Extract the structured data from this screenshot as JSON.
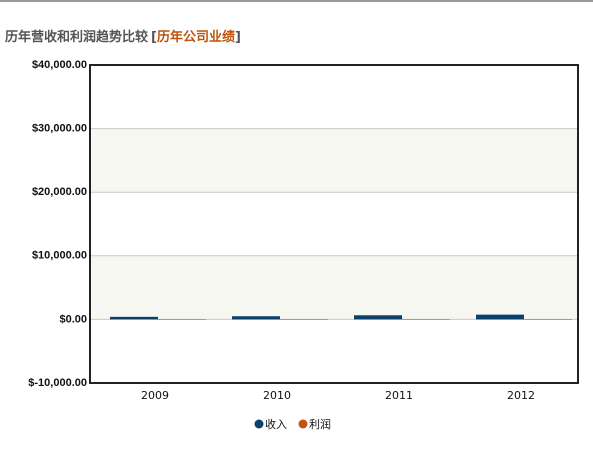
{
  "chart_data": {
    "type": "bar",
    "title": "历年营收和利润趋势比较",
    "subtitle": "历年公司业绩",
    "brackets": [
      "[",
      "]"
    ],
    "categories": [
      "2009",
      "2010",
      "2011",
      "2012"
    ],
    "series": [
      {
        "name": "收入",
        "color": "#0d3f6b",
        "values": [
          400,
          500,
          650,
          750
        ]
      },
      {
        "name": "利润",
        "color": "#c0520a",
        "values": [
          20,
          30,
          40,
          50
        ]
      }
    ],
    "ylim": [
      -10000,
      40000
    ],
    "yticks": [
      {
        "value": -10000,
        "label": "$-10,000.00"
      },
      {
        "value": 0,
        "label": "$0.00"
      },
      {
        "value": 10000,
        "label": "$10,000.00"
      },
      {
        "value": 20000,
        "label": "$20,000.00"
      },
      {
        "value": 30000,
        "label": "$30,000.00"
      },
      {
        "value": 40000,
        "label": "$40,000.00"
      }
    ],
    "grid": true
  }
}
